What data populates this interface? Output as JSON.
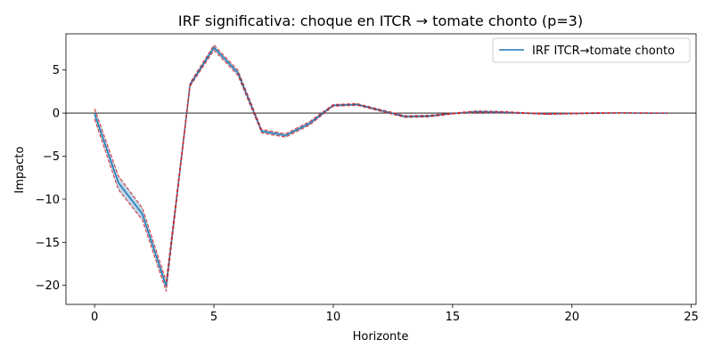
{
  "chart_data": {
    "type": "line",
    "title": "IRF significativa: choque en ITCR → tomate chonto (p=3)",
    "xlabel": "Horizonte",
    "ylabel": "Impacto",
    "xlim": [
      -1.2,
      25.2
    ],
    "ylim": [
      -22.2,
      9.2
    ],
    "xticks": [
      0,
      5,
      10,
      15,
      20,
      25
    ],
    "yticks": [
      -20,
      -15,
      -10,
      -5,
      0,
      5
    ],
    "xtick_labels": [
      "0",
      "5",
      "10",
      "15",
      "20",
      "25"
    ],
    "ytick_labels": [
      "−20",
      "−15",
      "−10",
      "−5",
      "0",
      "5"
    ],
    "zero_line": 0,
    "grid": false,
    "legend_position": "upper right",
    "series": [
      {
        "name": "IRF ITCR→tomate chonto",
        "color": "#1f77b4",
        "x": [
          0,
          1,
          2,
          3,
          4,
          5,
          6,
          7,
          8,
          9,
          10,
          11,
          12,
          13,
          14,
          15,
          16,
          17,
          18,
          19,
          20,
          21,
          22,
          23,
          24
        ],
        "values": [
          -0.1,
          -8.1,
          -11.7,
          -20.1,
          3.3,
          7.6,
          4.7,
          -2.1,
          -2.6,
          -1.2,
          0.9,
          1.0,
          0.3,
          -0.4,
          -0.35,
          -0.05,
          0.15,
          0.1,
          0.0,
          -0.1,
          -0.05,
          0.0,
          0.02,
          0.0,
          0.0
        ]
      }
    ],
    "band": {
      "color": "#d62728",
      "fill": "#1f77b4",
      "lower": [
        -0.7,
        -8.9,
        -12.4,
        -20.7,
        3.1,
        7.3,
        4.4,
        -2.3,
        -2.8,
        -1.4,
        0.8,
        0.9,
        0.2,
        -0.5,
        -0.45,
        -0.1,
        0.05,
        0.0,
        -0.05,
        -0.15,
        -0.1,
        -0.05,
        0.0,
        -0.02,
        -0.02
      ],
      "upper": [
        0.5,
        -7.3,
        -11.0,
        -19.5,
        3.5,
        7.9,
        5.0,
        -1.9,
        -2.4,
        -1.0,
        1.0,
        1.1,
        0.4,
        -0.3,
        -0.25,
        0.0,
        0.25,
        0.2,
        0.05,
        -0.05,
        0.0,
        0.05,
        0.05,
        0.03,
        0.02
      ]
    }
  }
}
